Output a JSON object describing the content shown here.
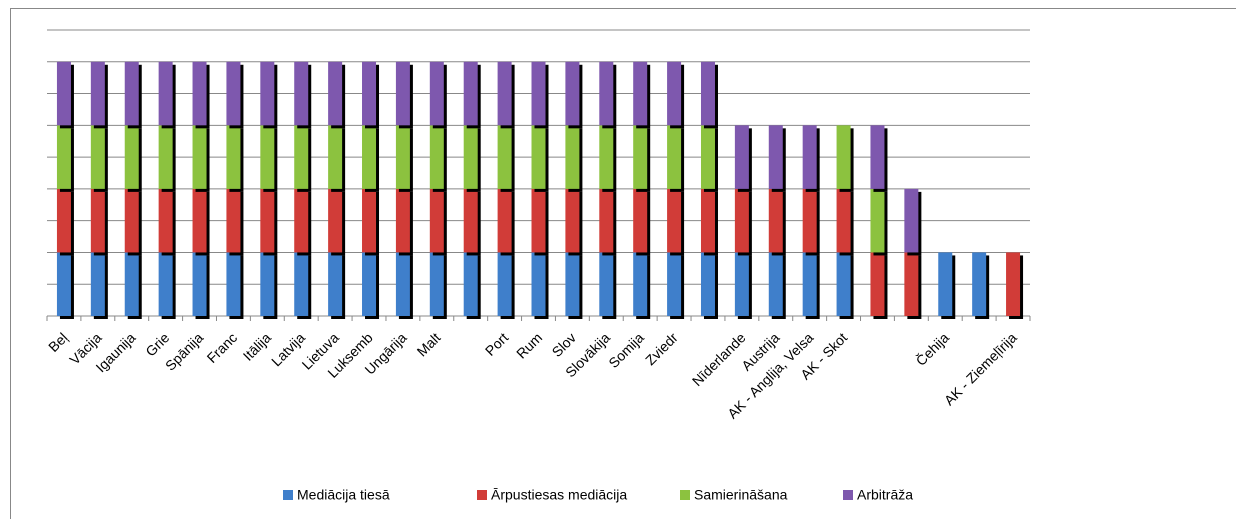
{
  "chart_data": {
    "type": "stacked_bar",
    "categories": [
      "Beļ",
      "Vācija",
      "Igaunija",
      "Grie",
      "Spānija",
      "Franc",
      "Itālija",
      "Latvija",
      "Lietuva",
      "Luksemb",
      "Ungārija",
      "Malt",
      null,
      "Port",
      "Rum",
      "Slov",
      "Slovākija",
      "Somija",
      "Zviedr",
      null,
      "Nīderlande",
      "Austrija",
      "AK - Anglija, Velsa",
      "AK - Skot",
      null,
      null,
      "Čehija",
      null,
      "AK - Ziemeļīrija"
    ],
    "series": [
      {
        "name": "Mediācija tiesā",
        "color": "#3f7fcb",
        "values": [
          1,
          1,
          1,
          1,
          1,
          1,
          1,
          1,
          1,
          1,
          1,
          1,
          1,
          1,
          1,
          1,
          1,
          1,
          1,
          1,
          1,
          1,
          1,
          1,
          0,
          0,
          1,
          1,
          0
        ]
      },
      {
        "name": "Ārpustiesas mediācija",
        "color": "#d13c38",
        "values": [
          1,
          1,
          1,
          1,
          1,
          1,
          1,
          1,
          1,
          1,
          1,
          1,
          1,
          1,
          1,
          1,
          1,
          1,
          1,
          1,
          1,
          1,
          1,
          1,
          1,
          1,
          0,
          0,
          1
        ]
      },
      {
        "name": "Samierināšana",
        "color": "#8cc23f",
        "values": [
          1,
          1,
          1,
          1,
          1,
          1,
          1,
          1,
          1,
          1,
          1,
          1,
          1,
          1,
          1,
          1,
          1,
          1,
          1,
          1,
          0,
          0,
          0,
          1,
          1,
          0,
          0,
          0,
          0
        ]
      },
      {
        "name": "Arbitrāža",
        "color": "#7e58ae",
        "values": [
          1,
          1,
          1,
          1,
          1,
          1,
          1,
          1,
          1,
          1,
          1,
          1,
          1,
          1,
          1,
          1,
          1,
          1,
          1,
          1,
          1,
          1,
          1,
          0,
          1,
          1,
          0,
          0,
          0
        ]
      }
    ],
    "ylim": [
      0,
      4.5
    ],
    "yticks": [
      0,
      0.5,
      1,
      1.5,
      2,
      2.5,
      3,
      3.5,
      4,
      4.5
    ],
    "grid": true,
    "legend": "bottom"
  }
}
